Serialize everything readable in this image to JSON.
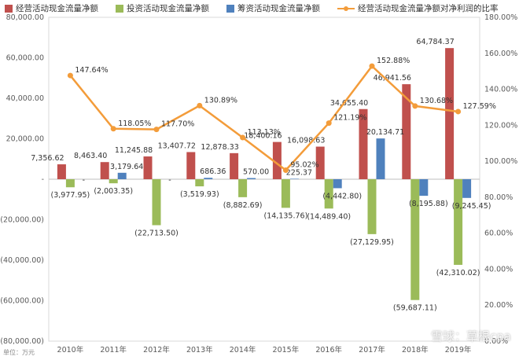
{
  "legend": {
    "operating": "经营活动现金流量净额",
    "investing": "投资活动现金流量净额",
    "financing": "筹资活动现金流量净额",
    "ratio": "经营活动现金流量净额对净利润的比率"
  },
  "colors": {
    "operating": "#C0504D",
    "investing": "#9BBB59",
    "financing": "#4F81BD",
    "ratio": "#F39C3A"
  },
  "watermark": "雪球：草根cpa",
  "unit_label": "单位：万元",
  "chart_data": {
    "type": "bar",
    "categories": [
      "2010年",
      "2011年",
      "2012年",
      "2013年",
      "2014年",
      "2015年",
      "2016年",
      "2017年",
      "2018年",
      "2019年"
    ],
    "series": [
      {
        "name": "经营活动现金流量净额",
        "values": [
          7356.62,
          8463.4,
          11245.88,
          13407.72,
          12878.33,
          18400.16,
          16098.63,
          34655.4,
          46941.56,
          64784.37
        ],
        "labels": [
          "7,356.62",
          "8,463.40",
          "11,245.88",
          "13,407.72",
          "12,878.33",
          "18,400.16",
          "16,098.63",
          "34,655.40",
          "46,941.56",
          "64,784.37"
        ]
      },
      {
        "name": "投资活动现金流量净额",
        "values": [
          -3977.95,
          -2003.35,
          -22713.5,
          -3519.93,
          -8882.69,
          -14135.76,
          -14489.4,
          -27129.95,
          -59687.11,
          -42310.02
        ],
        "labels": [
          "(3,977.95)",
          "(2,003.35)",
          "(22,713.50)",
          "(3,519.93)",
          "(8,882.69)",
          "(14,135.76)",
          "(14,489.40)",
          "(27,129.95)",
          "(59,687.11)",
          "(42,310.02)"
        ]
      },
      {
        "name": "筹资活动现金流量净额",
        "values": [
          0,
          3179.64,
          0,
          686.36,
          570.0,
          225.37,
          -4442.8,
          20134.71,
          -8195.88,
          -9245.45
        ],
        "labels": [
          "-",
          "3,179.64",
          "-",
          "686.36",
          "570.00",
          "225.37",
          "(4,442.80)",
          "20,134.71",
          "(8,195.88)",
          "(9,245.45)"
        ]
      },
      {
        "name": "经营活动现金流量净额对净利润的比率",
        "axis": "right",
        "type": "line",
        "values": [
          147.64,
          118.05,
          117.7,
          130.89,
          113.13,
          95.02,
          121.19,
          152.88,
          130.68,
          127.59
        ],
        "labels": [
          "147.64%",
          "118.05%",
          "117.70%",
          "130.89%",
          "113.13%",
          "95.02%",
          "121.19%",
          "152.88%",
          "130.68%",
          "127.59%"
        ]
      }
    ],
    "left_axis": {
      "range": [
        -80000,
        80000
      ],
      "ticks": [
        80000,
        60000,
        40000,
        20000,
        0,
        -20000,
        -40000,
        -60000,
        -80000
      ],
      "tick_labels": [
        "80,000.00",
        "60,000.00",
        "40,000.00",
        "20,000.00",
        "-",
        "(20,000.00)",
        "(40,000.00)",
        "(60,000.00)",
        "(80,000.00)"
      ]
    },
    "right_axis": {
      "range": [
        0,
        180
      ],
      "ticks": [
        180,
        160,
        140,
        120,
        100,
        80,
        60,
        40,
        20,
        0
      ],
      "tick_labels": [
        "180.00%",
        "160.00%",
        "140.00%",
        "120.00%",
        "100.00%",
        "80.00%",
        "60.00%",
        "40.00%",
        "20.00%",
        "0.00%"
      ]
    },
    "legend_position": "top",
    "grid": false
  }
}
